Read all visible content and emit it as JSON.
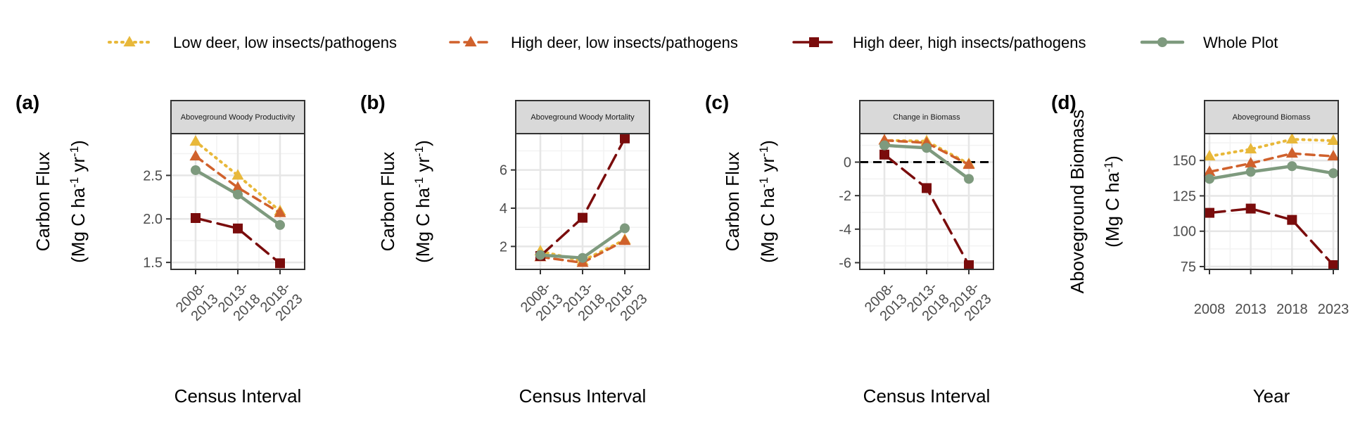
{
  "legend": [
    {
      "name": "Low deer, low insects/pathogens",
      "color": "#E8B83A",
      "marker": "triangle",
      "dash": "dotted"
    },
    {
      "name": "High deer, low insects/pathogens",
      "color": "#D0612C",
      "marker": "triangle",
      "dash": "dashed"
    },
    {
      "name": "High deer, high insects/pathogens",
      "color": "#7A0C0C",
      "marker": "square",
      "dash": "longdash"
    },
    {
      "name": "Whole Plot",
      "color": "#7E9A7E",
      "marker": "circle",
      "dash": "solid"
    }
  ],
  "chart_data": [
    {
      "type": "line",
      "panel_label": "(a)",
      "strip": "Aboveground Woody Productivity",
      "xlabel": "Census Interval",
      "ylabel_main": "Carbon Flux",
      "ylabel_unit": {
        "open": "(Mg C ha",
        "sup1": "-1",
        "mid": " yr",
        "sup2": "-1",
        "close": ")"
      },
      "categories": [
        [
          "2008-",
          "2013"
        ],
        [
          "2013-",
          "2018"
        ],
        [
          "2018-",
          "2023"
        ]
      ],
      "ylim": [
        1.42,
        2.98
      ],
      "yticks": [
        1.5,
        2.0,
        2.5
      ],
      "ytick_labels": [
        "1.5",
        "2.0",
        "2.5"
      ],
      "zero_line": false,
      "series": [
        {
          "name": "Low deer, low insects/pathogens",
          "values": [
            2.89,
            2.5,
            2.09
          ]
        },
        {
          "name": "High deer, low insects/pathogens",
          "values": [
            2.72,
            2.36,
            2.07
          ]
        },
        {
          "name": "High deer, high insects/pathogens",
          "values": [
            2.01,
            1.89,
            1.49
          ]
        },
        {
          "name": "Whole Plot",
          "values": [
            2.56,
            2.28,
            1.93
          ]
        }
      ]
    },
    {
      "type": "line",
      "panel_label": "(b)",
      "strip": "Aboveground Woody Mortality",
      "xlabel": "Census Interval",
      "ylabel_main": "Carbon Flux",
      "ylabel_unit": {
        "open": "(Mg C ha",
        "sup1": "-1",
        "mid": " yr",
        "sup2": "-1",
        "close": ")"
      },
      "categories": [
        [
          "2008-",
          "2013"
        ],
        [
          "2013-",
          "2018"
        ],
        [
          "2018-",
          "2023"
        ]
      ],
      "ylim": [
        0.8,
        7.9
      ],
      "yticks": [
        2,
        4,
        6
      ],
      "ytick_labels": [
        "2",
        "4",
        "6"
      ],
      "zero_line": false,
      "series": [
        {
          "name": "Low deer, low insects/pathogens",
          "values": [
            1.75,
            1.25,
            2.35
          ]
        },
        {
          "name": "High deer, low insects/pathogens",
          "values": [
            1.45,
            1.15,
            2.3
          ]
        },
        {
          "name": "High deer, high insects/pathogens",
          "values": [
            1.5,
            3.5,
            7.65
          ]
        },
        {
          "name": "Whole Plot",
          "values": [
            1.55,
            1.4,
            2.95
          ]
        }
      ]
    },
    {
      "type": "line",
      "panel_label": "(c)",
      "strip": "Change in Biomass",
      "xlabel": "Census Interval",
      "ylabel_main": "Carbon Flux",
      "ylabel_unit": {
        "open": "(Mg C ha",
        "sup1": "-1",
        "mid": " yr",
        "sup2": "-1",
        "close": ")"
      },
      "categories": [
        [
          "2008-",
          "2013"
        ],
        [
          "2013-",
          "2018"
        ],
        [
          "2018-",
          "2023"
        ]
      ],
      "ylim": [
        -6.4,
        1.7
      ],
      "yticks": [
        -6,
        -4,
        -2,
        0
      ],
      "ytick_labels": [
        "-6",
        "-4",
        "-2",
        "0"
      ],
      "zero_line": true,
      "series": [
        {
          "name": "Low deer, low insects/pathogens",
          "values": [
            1.3,
            1.25,
            -0.1
          ]
        },
        {
          "name": "High deer, low insects/pathogens",
          "values": [
            1.3,
            1.15,
            -0.15
          ]
        },
        {
          "name": "High deer, high insects/pathogens",
          "values": [
            0.45,
            -1.55,
            -6.15
          ]
        },
        {
          "name": "Whole Plot",
          "values": [
            1.0,
            0.85,
            -1.0
          ]
        }
      ]
    },
    {
      "type": "line",
      "panel_label": "(d)",
      "strip": "Aboveground Biomass",
      "xlabel": "Year",
      "ylabel_main": "Aboveground Biomass",
      "ylabel_unit": {
        "open": "(Mg C ha",
        "sup1": "-1",
        "mid": "",
        "sup2": "",
        "close": ")"
      },
      "categories": [
        [
          "2008"
        ],
        [
          "2013"
        ],
        [
          "2018"
        ],
        [
          "2023"
        ]
      ],
      "ylim": [
        73,
        169
      ],
      "yticks": [
        75,
        100,
        125,
        150
      ],
      "ytick_labels": [
        "75",
        "100",
        "125",
        "150"
      ],
      "zero_line": false,
      "series": [
        {
          "name": "Low deer, low insects/pathogens",
          "values": [
            153,
            158,
            165,
            164
          ]
        },
        {
          "name": "High deer, low insects/pathogens",
          "values": [
            142,
            148,
            155,
            153
          ]
        },
        {
          "name": "High deer, high insects/pathogens",
          "values": [
            113,
            116,
            108,
            76
          ]
        },
        {
          "name": "Whole Plot",
          "values": [
            137,
            142,
            146,
            141
          ]
        }
      ]
    }
  ]
}
